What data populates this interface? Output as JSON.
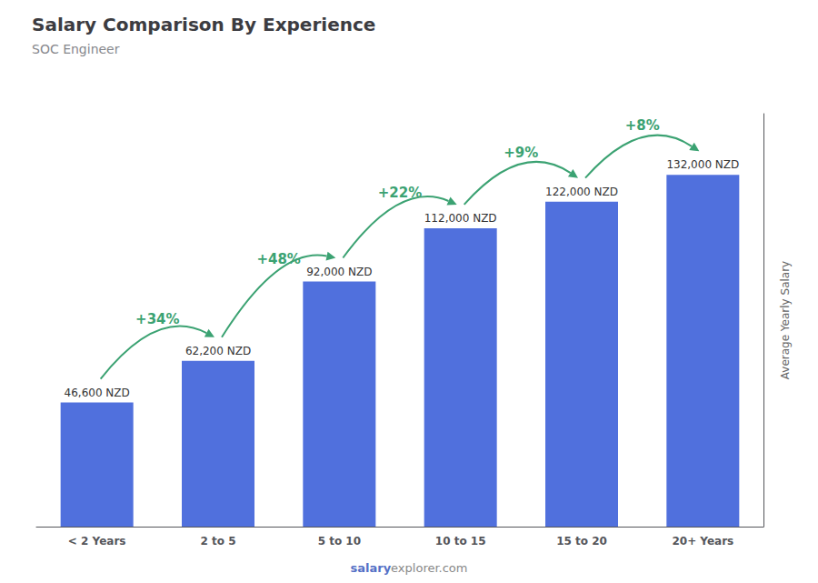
{
  "chart_data": {
    "type": "bar",
    "title": "Salary Comparison By Experience",
    "subtitle": "SOC Engineer",
    "ylabel": "Average Yearly Salary",
    "categories": [
      "< 2 Years",
      "2 to 5",
      "5 to 10",
      "10 to 15",
      "15 to 20",
      "20+ Years"
    ],
    "values": [
      46600,
      62200,
      92000,
      112000,
      122000,
      132000
    ],
    "value_labels": [
      "46,600 NZD",
      "62,200 NZD",
      "92,000 NZD",
      "112,000 NZD",
      "122,000 NZD",
      "132,000 NZD"
    ],
    "data_labels": true,
    "annotations": [
      "+34%",
      "+48%",
      "+22%",
      "+9%",
      "+8%"
    ],
    "watermark": [
      "salary",
      "explorer.com"
    ],
    "ylim": [
      0,
      155000
    ],
    "yticks": [],
    "grid": false,
    "tick_labels": "x"
  }
}
